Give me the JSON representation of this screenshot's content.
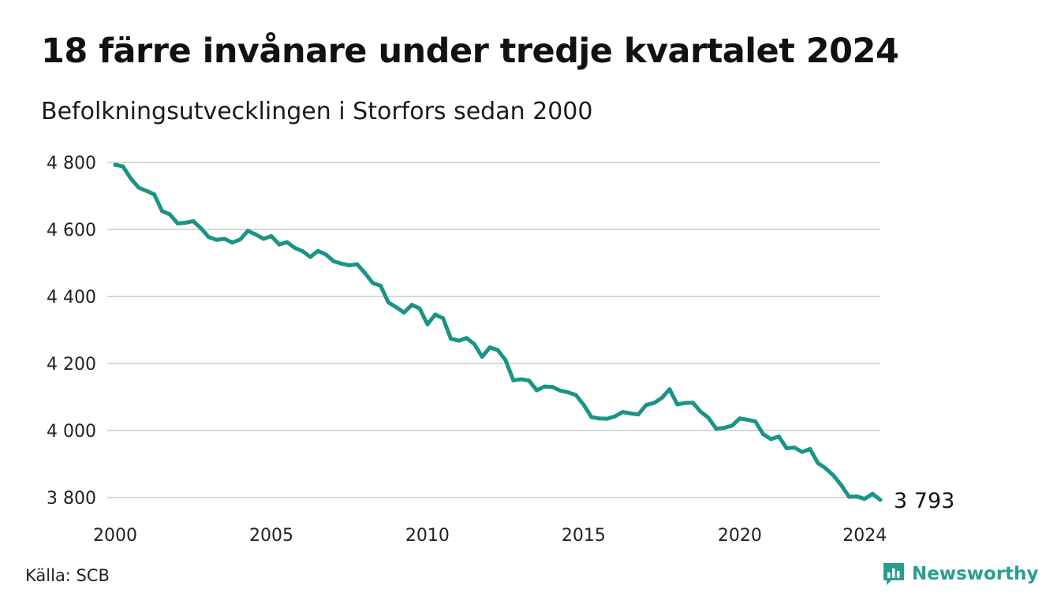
{
  "title": "18 färre invånare under tredje kvartalet 2024",
  "subtitle": "Befolkningsutvecklingen i Storfors sedan 2000",
  "source": "Källa: SCB",
  "brand": {
    "name": "Newsworthy",
    "icon": "newsworthy-logo-icon",
    "color": "#2a9d8f"
  },
  "chart_data": {
    "type": "line",
    "color": "#1a9485",
    "grid": true,
    "xlim": [
      2000,
      2024.5
    ],
    "ylim": [
      3800,
      4800
    ],
    "x_ticks": [
      {
        "value": 2000,
        "label": "2000"
      },
      {
        "value": 2005,
        "label": "2005"
      },
      {
        "value": 2010,
        "label": "2010"
      },
      {
        "value": 2015,
        "label": "2015"
      },
      {
        "value": 2020,
        "label": "2020"
      },
      {
        "value": 2024,
        "label": "2024"
      }
    ],
    "y_ticks": [
      {
        "value": 4800,
        "label": "4 800"
      },
      {
        "value": 4600,
        "label": "4 600"
      },
      {
        "value": 4400,
        "label": "4 400"
      },
      {
        "value": 4200,
        "label": "4 200"
      },
      {
        "value": 4000,
        "label": "4 000"
      },
      {
        "value": 3800,
        "label": "3 800"
      }
    ],
    "end_label": "3 793",
    "series": [
      {
        "x": [
          2000.0,
          2000.25,
          2000.5,
          2000.75,
          2001.0,
          2001.25,
          2001.5,
          2001.75,
          2002.0,
          2002.25,
          2002.5,
          2002.75,
          2003.0,
          2003.25,
          2003.5,
          2003.75,
          2004.0,
          2004.25,
          2004.5,
          2004.75,
          2005.0,
          2005.25,
          2005.5,
          2005.75,
          2006.0,
          2006.25,
          2006.5,
          2006.75,
          2007.0,
          2007.25,
          2007.5,
          2007.75,
          2008.0,
          2008.25,
          2008.5,
          2008.75,
          2009.0,
          2009.25,
          2009.5,
          2009.75,
          2010.0,
          2010.25,
          2010.5,
          2010.75,
          2011.0,
          2011.25,
          2011.5,
          2011.75,
          2012.0,
          2012.25,
          2012.5,
          2012.75,
          2013.0,
          2013.25,
          2013.5,
          2013.75,
          2014.0,
          2014.25,
          2014.5,
          2014.75,
          2015.0,
          2015.25,
          2015.5,
          2015.75,
          2016.0,
          2016.25,
          2016.5,
          2016.75,
          2017.0,
          2017.25,
          2017.5,
          2017.75,
          2018.0,
          2018.25,
          2018.5,
          2018.75,
          2019.0,
          2019.25,
          2019.5,
          2019.75,
          2020.0,
          2020.25,
          2020.5,
          2020.75,
          2021.0,
          2021.25,
          2021.5,
          2021.75,
          2022.0,
          2022.25,
          2022.5,
          2022.75,
          2023.0,
          2023.25,
          2023.5,
          2023.75,
          2024.0,
          2024.25,
          2024.5
        ],
        "y": [
          4793,
          4788,
          4752,
          4725,
          4715,
          4705,
          4655,
          4645,
          4618,
          4620,
          4625,
          4603,
          4577,
          4569,
          4572,
          4561,
          4570,
          4596,
          4585,
          4572,
          4580,
          4555,
          4562,
          4545,
          4535,
          4518,
          4536,
          4525,
          4505,
          4498,
          4493,
          4496,
          4470,
          4440,
          4432,
          4382,
          4368,
          4352,
          4375,
          4364,
          4317,
          4346,
          4335,
          4274,
          4268,
          4276,
          4258,
          4220,
          4248,
          4240,
          4210,
          4150,
          4153,
          4149,
          4120,
          4131,
          4130,
          4119,
          4114,
          4106,
          4077,
          4040,
          4036,
          4035,
          4042,
          4055,
          4051,
          4048,
          4076,
          4082,
          4097,
          4123,
          4078,
          4082,
          4083,
          4056,
          4038,
          4005,
          4008,
          4014,
          4036,
          4032,
          4027,
          3989,
          3974,
          3982,
          3947,
          3949,
          3936,
          3945,
          3903,
          3887,
          3866,
          3837,
          3802,
          3803,
          3796,
          3811,
          3793
        ]
      }
    ]
  }
}
